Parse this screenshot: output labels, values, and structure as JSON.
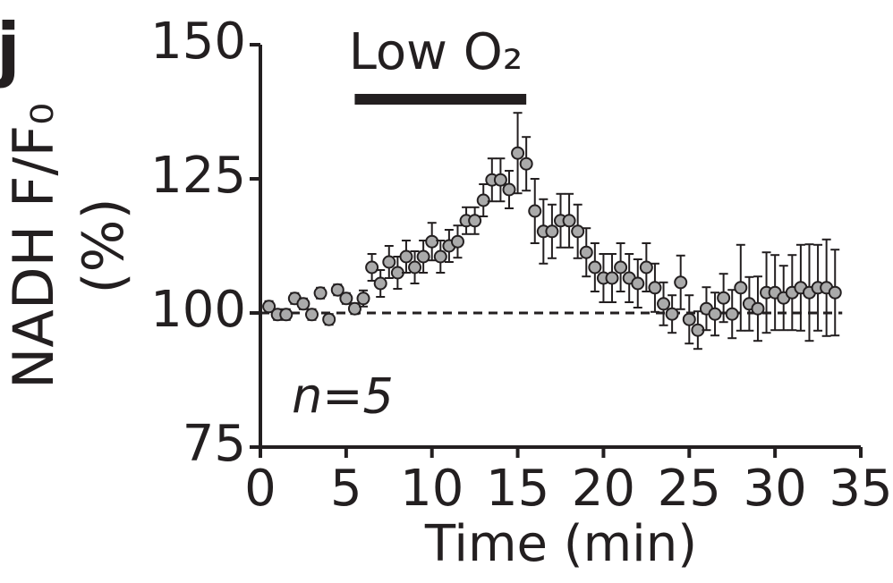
{
  "chart_data": {
    "type": "scatter",
    "panel_label": "j",
    "ylabel": [
      "NADH F/F₀",
      "(%)"
    ],
    "xlabel": "Time (min)",
    "annotation": "Low O₂",
    "annotation_span": [
      5.5,
      15.5
    ],
    "reference_line": 100,
    "n_label": "n=5",
    "xlim": [
      0,
      35
    ],
    "xticks": [
      0,
      5,
      10,
      15,
      20,
      25,
      30,
      35
    ],
    "ylim": [
      75,
      150
    ],
    "yticks": [
      75,
      100,
      125,
      150
    ],
    "series": [
      {
        "color": "#aaaaaa",
        "x": [
          0.5,
          1,
          1.5,
          2,
          2.5,
          3,
          3.5,
          4,
          4.5,
          5,
          5.5,
          6,
          6.5,
          7,
          7.5,
          8,
          8.5,
          9,
          9.5,
          10,
          10.5,
          11,
          11.5,
          12,
          12.5,
          13,
          13.5,
          14,
          14.5,
          15,
          15.5,
          16,
          16.5,
          17,
          17.5,
          18,
          18.5,
          19,
          19.5,
          20,
          20.5,
          21,
          21.5,
          22,
          22.5,
          23,
          23.5,
          24,
          24.5,
          25,
          25.5,
          26,
          26.5,
          27,
          27.5,
          28,
          28.5,
          29,
          29.5,
          30,
          30.5,
          31,
          31.5,
          32,
          32.5,
          33,
          33.5
        ],
        "values": [
          101.2,
          99.7,
          99.7,
          102.7,
          101.7,
          99.7,
          103.7,
          98.8,
          104.3,
          102.7,
          100.8,
          102.7,
          108.5,
          105.5,
          109.5,
          107.5,
          110.5,
          108.5,
          110.5,
          113.3,
          110.5,
          112.5,
          113.3,
          117.2,
          117.2,
          121,
          124.8,
          124.8,
          123,
          129.8,
          127.8,
          119,
          115.2,
          115.2,
          117.2,
          117.2,
          115.2,
          111.3,
          108.5,
          106.5,
          106.5,
          108.5,
          106.5,
          105.5,
          108.5,
          104.7,
          101.7,
          99.8,
          105.7,
          98.8,
          96.8,
          100.8,
          99.8,
          102.8,
          99.8,
          104.7,
          101.7,
          100.8,
          103.8,
          103.8,
          102.8,
          103.8,
          104.7,
          103.8,
          104.7,
          104.7,
          103.8
        ],
        "errors": [
          1,
          1,
          1,
          1,
          1,
          1,
          1,
          1,
          1,
          1,
          1,
          1.5,
          2.5,
          2.5,
          3,
          3,
          3,
          3,
          3,
          3.5,
          3,
          3,
          3,
          2.5,
          2.5,
          3,
          4,
          4,
          3.5,
          7.5,
          5,
          6,
          6,
          5,
          5,
          5,
          5,
          4.5,
          4.5,
          4.5,
          4.5,
          4.5,
          4.5,
          4.5,
          4.5,
          4.5,
          4,
          3.5,
          5,
          4.5,
          3.5,
          4,
          4,
          4.5,
          4.5,
          8,
          5,
          6,
          7.5,
          7,
          6,
          7,
          8,
          9,
          8,
          9,
          8
        ]
      }
    ]
  }
}
